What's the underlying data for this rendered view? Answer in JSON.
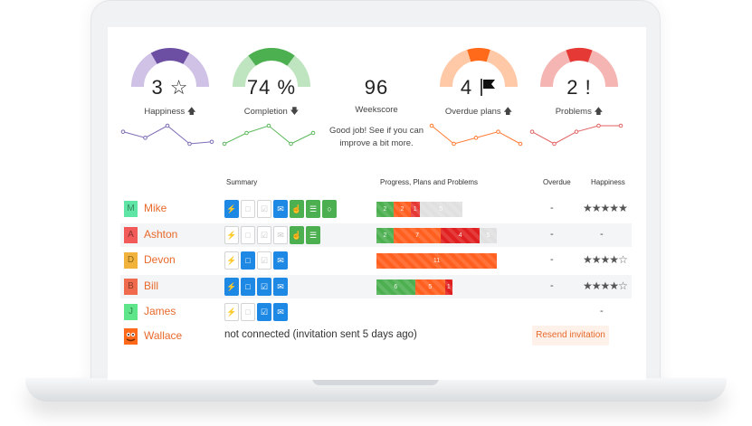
{
  "metrics": [
    {
      "id": "happiness",
      "value": "3 ☆",
      "label": "Happiness",
      "trend": "up",
      "arrow": "🡅",
      "color": "#6c4fa3",
      "light": "#cfc2e6",
      "fraction": 0.6
    },
    {
      "id": "completion",
      "value": "74 %",
      "label": "Completion",
      "trend": "down",
      "arrow": "🡇",
      "color": "#4caf50",
      "light": "#bfe5c0",
      "fraction": 0.74
    },
    {
      "id": "weekscore",
      "value": "96",
      "label": "Weekscore",
      "note_line1": "Good job! See if you can",
      "note_line2": "improve a bit more."
    },
    {
      "id": "overdue",
      "value": "4",
      "label": "Overdue plans",
      "trend": "up",
      "arrow": "🡅",
      "color": "#ff6a1a",
      "light": "#ffc9a8",
      "fraction": 0.35
    },
    {
      "id": "problems",
      "value": "2 !",
      "label": "Problems",
      "trend": "up",
      "arrow": "🡅",
      "color": "#e53935",
      "light": "#f5b5b3",
      "fraction": 0.4
    }
  ],
  "sparklines": {
    "happiness": {
      "color": "#7e6bb5",
      "values": [
        3.2,
        2.9,
        3.5,
        2.6,
        2.7
      ]
    },
    "completion": {
      "color": "#5cb85c",
      "values": [
        60,
        75,
        85,
        60,
        75
      ]
    },
    "overdue": {
      "color": "#ff7a33",
      "values": [
        5,
        2,
        3,
        4,
        2
      ]
    },
    "problems": {
      "color": "#e06262",
      "values": [
        3,
        1,
        3,
        4,
        4
      ]
    }
  },
  "headers": {
    "summary": "Summary",
    "progress": "Progress, Plans and Problems",
    "overdue": "Overdue",
    "happiness": "Happiness"
  },
  "icon_glyphs": {
    "lightning": "⚡",
    "square": "□",
    "check": "☑",
    "chat": "✉",
    "thumb": "☝",
    "doc": "☰",
    "ring": "○"
  },
  "people": [
    {
      "name": "Mike",
      "initial": "M",
      "color": "#5fe6a6",
      "alt": false,
      "icons": [
        [
          "lightning",
          "blue"
        ],
        [
          "square",
          "off"
        ],
        [
          "check",
          "off"
        ],
        [
          "chat",
          "blue"
        ],
        [
          "thumb",
          "green"
        ],
        [
          "doc",
          "green"
        ],
        [
          "ring",
          "green"
        ]
      ],
      "segments": [
        {
          "label": "2",
          "value": 2,
          "color": "#4caf50"
        },
        {
          "label": "2",
          "value": 2,
          "color": "#ff5f1f"
        },
        {
          "label": "1",
          "value": 1,
          "color": "#e53935"
        },
        {
          "label": "5",
          "value": 5,
          "color": "#e0e0e0"
        }
      ],
      "overdue": "-",
      "happiness": 5
    },
    {
      "name": "Ashton",
      "initial": "A",
      "color": "#f25a5a",
      "alt": true,
      "icons": [
        [
          "lightning",
          "off"
        ],
        [
          "square",
          "off"
        ],
        [
          "check",
          "off"
        ],
        [
          "chat",
          "off"
        ],
        [
          "thumb",
          "green"
        ],
        [
          "doc",
          "green"
        ]
      ],
      "segments": [
        {
          "label": "2",
          "value": 2,
          "color": "#4caf50"
        },
        {
          "label": "7",
          "value": 5.5,
          "color": "#ff5f1f"
        },
        {
          "label": "4",
          "value": 4.5,
          "color": "#e02020"
        },
        {
          "label": "5",
          "value": 2,
          "color": "#e0e0e0"
        }
      ],
      "overdue": "-",
      "happiness": 0
    },
    {
      "name": "Devon",
      "initial": "D",
      "color": "#f2b33d",
      "alt": false,
      "icons": [
        [
          "lightning",
          "off"
        ],
        [
          "square",
          "blue"
        ],
        [
          "check",
          "off"
        ],
        [
          "chat",
          "blue"
        ]
      ],
      "segments": [
        {
          "label": "11",
          "value": 14,
          "color": "#ff5f1f"
        }
      ],
      "overdue": "-",
      "happiness": 4
    },
    {
      "name": "Bill",
      "initial": "B",
      "color": "#f06a4e",
      "alt": true,
      "icons": [
        [
          "lightning",
          "blue"
        ],
        [
          "square",
          "blue"
        ],
        [
          "check",
          "blue"
        ],
        [
          "chat",
          "blue"
        ]
      ],
      "segments": [
        {
          "label": "6",
          "value": 4.5,
          "color": "#4caf50"
        },
        {
          "label": "5",
          "value": 3.5,
          "color": "#ff5f1f"
        },
        {
          "label": "1",
          "value": 0.8,
          "color": "#e02020"
        }
      ],
      "overdue": "-",
      "happiness": 4
    },
    {
      "name": "James",
      "initial": "J",
      "color": "#5fe68a",
      "alt": false,
      "icons": [
        [
          "lightning",
          "off"
        ],
        [
          "square",
          "off"
        ],
        [
          "check",
          "blue"
        ],
        [
          "chat",
          "blue"
        ]
      ],
      "segments": [],
      "overdue": "",
      "happiness": 0
    }
  ],
  "pending": {
    "name": "Wallace",
    "status": "not connected (invitation sent 5 days ago)",
    "action": "Resend invitation"
  }
}
